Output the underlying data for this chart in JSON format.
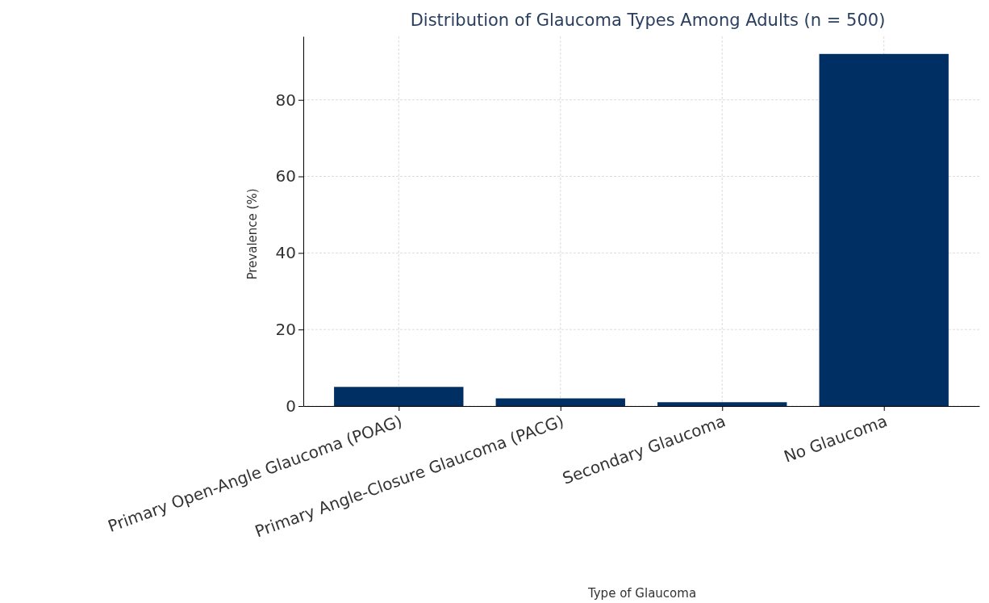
{
  "chart_data": {
    "type": "bar",
    "title": "Distribution of Glaucoma Types Among Adults (n = 500)",
    "xlabel": "Type of Glaucoma",
    "ylabel": "Prevalence (%)",
    "categories": [
      "Primary Open-Angle Glaucoma (POAG)",
      "Primary Angle-Closure Glaucoma (PACG)",
      "Secondary Glaucoma",
      "No Glaucoma"
    ],
    "values": [
      5,
      2,
      1,
      92
    ],
    "color": "#002f63",
    "ylim": [
      0,
      96.6
    ],
    "yticks": [
      0,
      20,
      40,
      60,
      80
    ],
    "grid": true
  }
}
